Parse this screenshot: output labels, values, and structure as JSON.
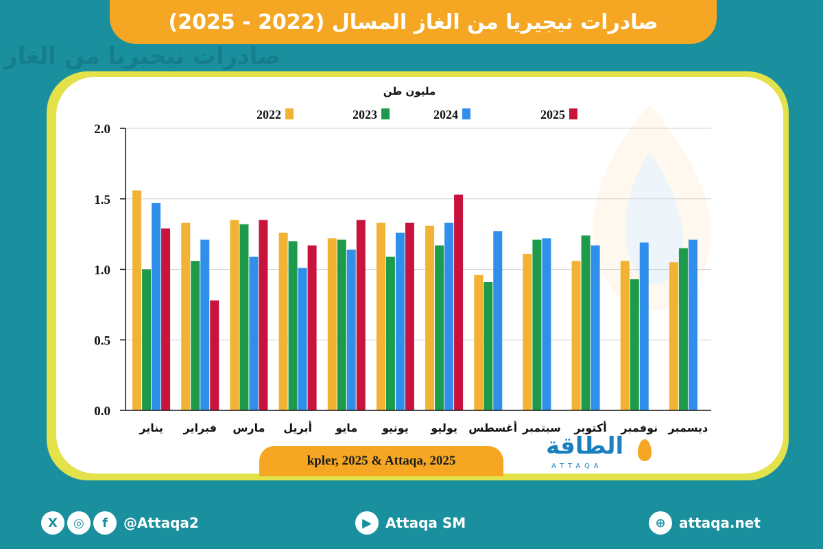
{
  "header": {
    "title": "صادرات نيجيريا من الغاز المسال (2022 - 2025)",
    "ghost_title": "صادرات نيجيريا من الغاز"
  },
  "colors": {
    "y2022": "#f2b233",
    "y2023": "#1e9b4a",
    "y2024": "#2f8fea",
    "y2025": "#c8143c",
    "accent": "#f5a623",
    "frame": "#e4e24a",
    "background": "#1a8f9e"
  },
  "chart_data": {
    "type": "bar",
    "ylabel": "مليون طن",
    "ylim": [
      0,
      2.0
    ],
    "yticks": [
      "0.0",
      "0.5",
      "1.0",
      "1.5",
      "2.0"
    ],
    "grid": true,
    "legend_position": "top",
    "categories": [
      "يناير",
      "فبراير",
      "مارس",
      "أبريل",
      "مايو",
      "يونيو",
      "يوليو",
      "أغسطس",
      "سبتمبر",
      "أكتوبر",
      "نوفمبر",
      "ديسمبر"
    ],
    "series": [
      {
        "name": "2022",
        "color": "#f2b233",
        "values": [
          1.56,
          1.33,
          1.35,
          1.26,
          1.22,
          1.33,
          1.31,
          0.96,
          1.11,
          1.06,
          1.06,
          1.05
        ]
      },
      {
        "name": "2023",
        "color": "#1e9b4a",
        "values": [
          1.0,
          1.06,
          1.32,
          1.2,
          1.21,
          1.09,
          1.17,
          0.91,
          1.21,
          1.24,
          0.93,
          1.15
        ]
      },
      {
        "name": "2024",
        "color": "#2f8fea",
        "values": [
          1.47,
          1.21,
          1.09,
          1.01,
          1.14,
          1.26,
          1.33,
          1.27,
          1.22,
          1.17,
          1.19,
          1.21
        ]
      },
      {
        "name": "2025",
        "color": "#c8143c",
        "values": [
          1.29,
          0.78,
          1.35,
          1.17,
          1.35,
          1.33,
          1.53,
          null,
          null,
          null,
          null,
          null
        ]
      }
    ]
  },
  "source": "kpler, 2025 & Attaqa, 2025",
  "logo": {
    "arabic": "الطاقة",
    "latin": "ATTAQA"
  },
  "footer": {
    "social_handle": "@Attaqa2",
    "youtube": "Attaqa SM",
    "website": "attaqa.net",
    "icon_x": "X",
    "icon_facebook": "f"
  }
}
